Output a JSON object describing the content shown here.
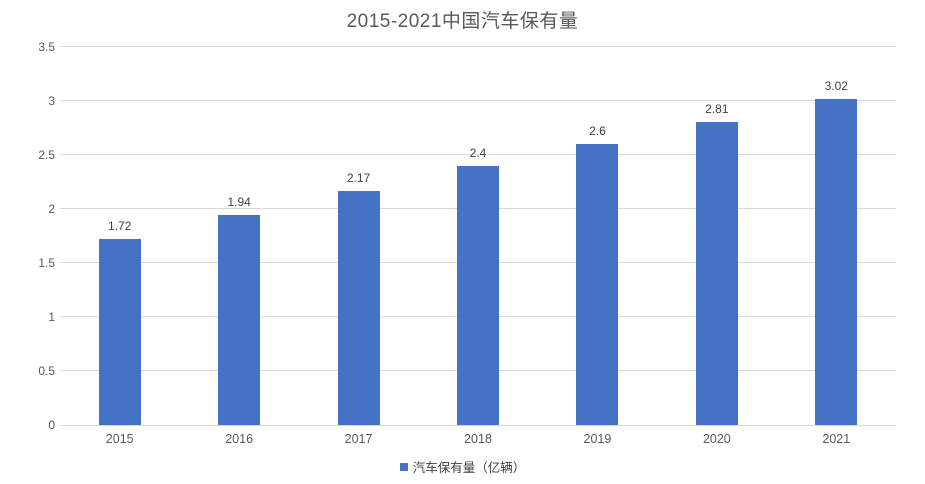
{
  "chart_data": {
    "type": "bar",
    "title": "2015-2021中国汽车保有量",
    "categories": [
      "2015",
      "2016",
      "2017",
      "2018",
      "2019",
      "2020",
      "2021"
    ],
    "series": [
      {
        "name": "汽车保有量（亿辆）",
        "values": [
          1.72,
          1.94,
          2.17,
          2.4,
          2.6,
          2.81,
          3.02
        ],
        "color": "#4472C4"
      }
    ],
    "data_labels": [
      "1.72",
      "1.94",
      "2.17",
      "2.4",
      "2.6",
      "2.81",
      "3.02"
    ],
    "xlabel": "",
    "ylabel": "",
    "ylim": [
      0,
      3.5
    ],
    "yticks": [
      "0",
      "0.5",
      "1",
      "1.5",
      "2",
      "2.5",
      "3",
      "3.5"
    ],
    "grid": "horizontal-only",
    "legend_position": "bottom-center",
    "legend": [
      {
        "label": "汽车保有量（亿辆）",
        "color": "#4472C4"
      }
    ]
  },
  "colors": {
    "bar": "#4472C4",
    "gridline": "#D9D9D9",
    "axis_line": "#D6D6D6",
    "title_text": "#595959",
    "tick_text": "#595959",
    "data_label_text": "#404040",
    "background": "#FFFFFF"
  },
  "icons": {
    "legend_marker": "square"
  }
}
